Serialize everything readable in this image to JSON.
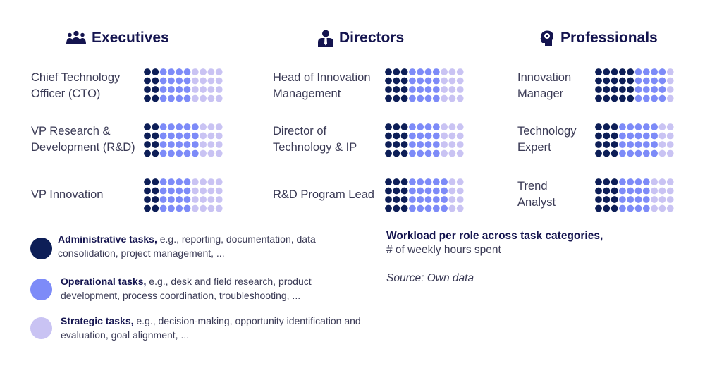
{
  "colors": {
    "administrative": "#0d1e57",
    "operational": "#7d8bf8",
    "strategic": "#c9c3f3",
    "header": "#14144f"
  },
  "columns": [
    {
      "title": "Executives",
      "icon": "group-icon"
    },
    {
      "title": "Directors",
      "icon": "manager-icon"
    },
    {
      "title": "Professionals",
      "icon": "head-gear-icon"
    }
  ],
  "chart_data": {
    "type": "waffle",
    "title": "Workload per role across task categories,",
    "subtitle": "# of weekly hours spent",
    "source": "Source: Own data",
    "categories": [
      "Administrative tasks",
      "Operational tasks",
      "Strategic tasks"
    ],
    "roles": [
      {
        "group": "Executives",
        "label": "Chief Technology Officer (CTO)",
        "lines": [
          "Chief Technology",
          "Officer (CTO)"
        ],
        "administrative": 8,
        "operational": 16,
        "strategic": 16
      },
      {
        "group": "Executives",
        "label": "VP Research & Development (R&D)",
        "lines": [
          "VP Research &",
          "Development (R&D)"
        ],
        "administrative": 8,
        "operational": 20,
        "strategic": 12
      },
      {
        "group": "Executives",
        "label": "VP Innovation",
        "lines": [
          "VP Innovation"
        ],
        "administrative": 8,
        "operational": 16,
        "strategic": 16
      },
      {
        "group": "Directors",
        "label": "Head of Innovation Management",
        "lines": [
          "Head of Innovation",
          "Management"
        ],
        "administrative": 12,
        "operational": 16,
        "strategic": 12
      },
      {
        "group": "Directors",
        "label": "Director of Technology & IP",
        "lines": [
          "Director of",
          "Technology & IP"
        ],
        "administrative": 12,
        "operational": 16,
        "strategic": 12
      },
      {
        "group": "Directors",
        "label": "R&D Program Lead",
        "lines": [
          "R&D Program Lead"
        ],
        "administrative": 12,
        "operational": 20,
        "strategic": 8
      },
      {
        "group": "Professionals",
        "label": "Innovation Manager",
        "lines": [
          "Innovation",
          "Manager"
        ],
        "administrative": 20,
        "operational": 16,
        "strategic": 4
      },
      {
        "group": "Professionals",
        "label": "Technology Expert",
        "lines": [
          "Technology",
          "Expert"
        ],
        "administrative": 12,
        "operational": 20,
        "strategic": 8
      },
      {
        "group": "Professionals",
        "label": "Trend Analyst",
        "lines": [
          "Trend",
          "Analyst"
        ],
        "administrative": 12,
        "operational": 16,
        "strategic": 12
      }
    ]
  },
  "legend": [
    {
      "name": "Administrative tasks,",
      "desc": " e.g., reporting, documentation, data consolidation, project management, ..."
    },
    {
      "name": "Operational tasks,",
      "desc": " e.g., desk and field research, product development, process coordination, troubleshooting, ..."
    },
    {
      "name": "Strategic tasks,",
      "desc": " e.g., decision-making, opportunity identification and evaluation, goal alignment, ..."
    }
  ]
}
